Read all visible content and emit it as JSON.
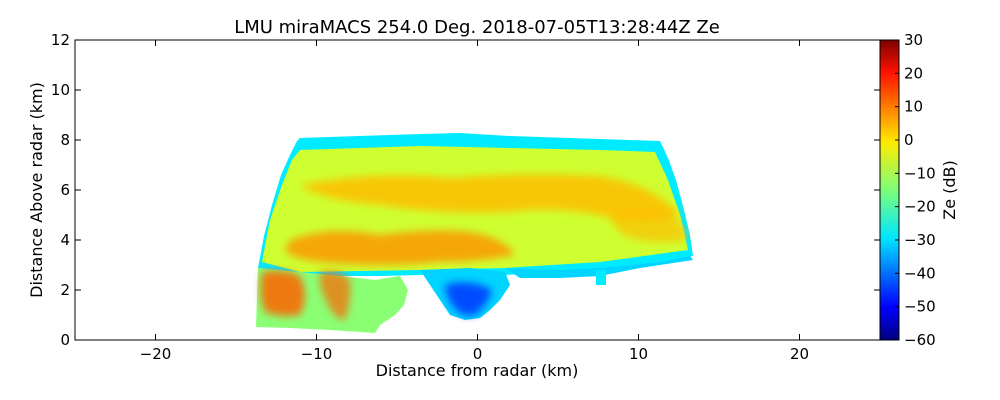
{
  "chart_data": {
    "type": "heatmap",
    "title": "LMU miraMACS 254.0 Deg. 2018-07-05T13:28:44Z  Ze",
    "xlabel": "Distance from radar (km)",
    "ylabel": "Distance Above radar  (km)",
    "xlim": [
      -25,
      25
    ],
    "ylim": [
      0,
      12
    ],
    "x_ticks": [
      -20,
      -10,
      0,
      10,
      20
    ],
    "y_ticks": [
      0,
      2,
      4,
      6,
      8,
      10,
      12
    ],
    "grid": false,
    "colorbar": {
      "label": "Ze (dB)",
      "range": [
        -60,
        30
      ],
      "ticks": [
        -60,
        -50,
        -40,
        -30,
        -20,
        -10,
        0,
        10,
        20,
        30
      ],
      "colormap": "jet"
    },
    "regions": [
      {
        "name": "upper cloud top edge",
        "ze_db": -28
      },
      {
        "name": "upper cloud body",
        "ze_db": -8
      },
      {
        "name": "upper cloud core",
        "ze_db": 2
      },
      {
        "name": "melting layer band",
        "ze_db": 6
      },
      {
        "name": "left precipitation shaft",
        "ze_db": 10
      },
      {
        "name": "low cloud left",
        "ze_db": -14
      },
      {
        "name": "central low cloud",
        "ze_db": -30
      },
      {
        "name": "central low cloud core",
        "ze_db": -45
      }
    ]
  }
}
